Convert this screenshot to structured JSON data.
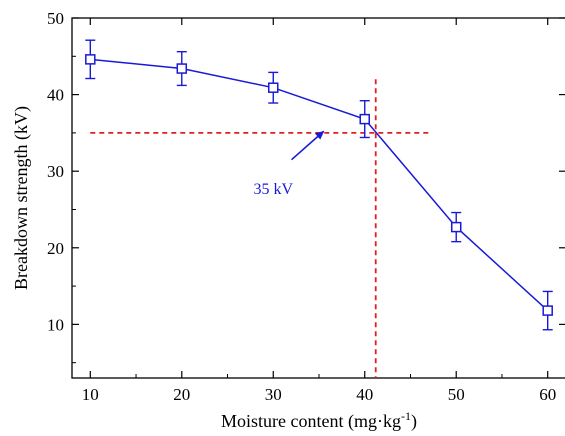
{
  "chart_data": {
    "type": "line",
    "xlabel": "Moisture content (mg·kg",
    "xlabel_sup": "-1",
    "xlabel_close": ")",
    "ylabel": "Breakdown strength (kV)",
    "xlim": [
      8,
      62
    ],
    "ylim": [
      3,
      50
    ],
    "x_ticks": [
      10,
      20,
      30,
      40,
      50,
      60
    ],
    "y_ticks": [
      10,
      20,
      30,
      40,
      50
    ],
    "series": [
      {
        "color": "#1a1ad6",
        "marker": "open-square",
        "points": [
          {
            "x": 10,
            "y": 44.6,
            "err": 2.5
          },
          {
            "x": 20,
            "y": 43.4,
            "err": 2.2
          },
          {
            "x": 30,
            "y": 40.9,
            "err": 2.0
          },
          {
            "x": 40,
            "y": 36.8,
            "err": 2.4
          },
          {
            "x": 50,
            "y": 22.7,
            "err": 1.9
          },
          {
            "x": 60,
            "y": 11.8,
            "err": 2.5
          }
        ]
      }
    ],
    "reference_lines": {
      "color": "#e02020",
      "style": "dashed",
      "horizontal_y": 35,
      "horizontal_x_range": [
        10,
        47
      ],
      "vertical_x": 41.2,
      "vertical_y_range": [
        3,
        42
      ]
    },
    "annotation": {
      "text": "35 kV",
      "color": "#1a1ad6",
      "text_at": [
        30,
        27
      ],
      "arrow_from": [
        32,
        31.5
      ],
      "arrow_to": [
        35.5,
        35.2
      ]
    },
    "grid": false,
    "legend": "none"
  }
}
